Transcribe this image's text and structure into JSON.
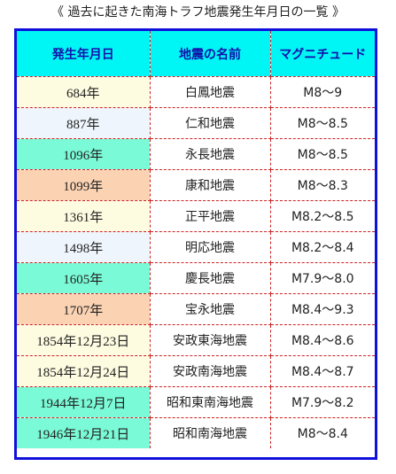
{
  "caption": "《 過去に起きた南海トラフ地震発生年月日の一覧 》",
  "table": {
    "headers": {
      "date": "発生年月日",
      "name": "地震の名前",
      "magnitude": "マグニチュード"
    },
    "rows": [
      {
        "date": "684年",
        "name": "白鳳地震",
        "magnitude": "M8～9",
        "date_bg": "#fdfbe0"
      },
      {
        "date": "887年",
        "name": "仁和地震",
        "magnitude": "M8～8.5",
        "date_bg": "#eef5fc"
      },
      {
        "date": "1096年",
        "name": "永長地震",
        "magnitude": "M8～8.5",
        "date_bg": "#7afad6"
      },
      {
        "date": "1099年",
        "name": "康和地震",
        "magnitude": "M8～8.3",
        "date_bg": "#fbd3b3"
      },
      {
        "date": "1361年",
        "name": "正平地震",
        "magnitude": "M8.2～8.5",
        "date_bg": "#fdfbe0"
      },
      {
        "date": "1498年",
        "name": "明応地震",
        "magnitude": "M8.2～8.4",
        "date_bg": "#eef5fc"
      },
      {
        "date": "1605年",
        "name": "慶長地震",
        "magnitude": "M7.9～8.0",
        "date_bg": "#7afad6"
      },
      {
        "date": "1707年",
        "name": "宝永地震",
        "magnitude": "M8.4～9.3",
        "date_bg": "#fbd3b3"
      },
      {
        "date": "1854年12月23日",
        "name": "安政東海地震",
        "magnitude": "M8.4～8.6",
        "date_bg": "#fdfbe0"
      },
      {
        "date": "1854年12月24日",
        "name": "安政南海地震",
        "magnitude": "M8.4～8.7",
        "date_bg": "#fdfbe0"
      },
      {
        "date": "1944年12月7日",
        "name": "昭和東南海地震",
        "magnitude": "M7.9～8.2",
        "date_bg": "#7afad6"
      },
      {
        "date": "1946年12月21日",
        "name": "昭和南海地震",
        "magnitude": "M8～8.4",
        "date_bg": "#7afad6"
      }
    ]
  },
  "colors": {
    "header_bg": "#00f5f5",
    "header_text": "#1010aa",
    "frame_border": "#1010dd",
    "cell_divider": "#cc2222"
  }
}
